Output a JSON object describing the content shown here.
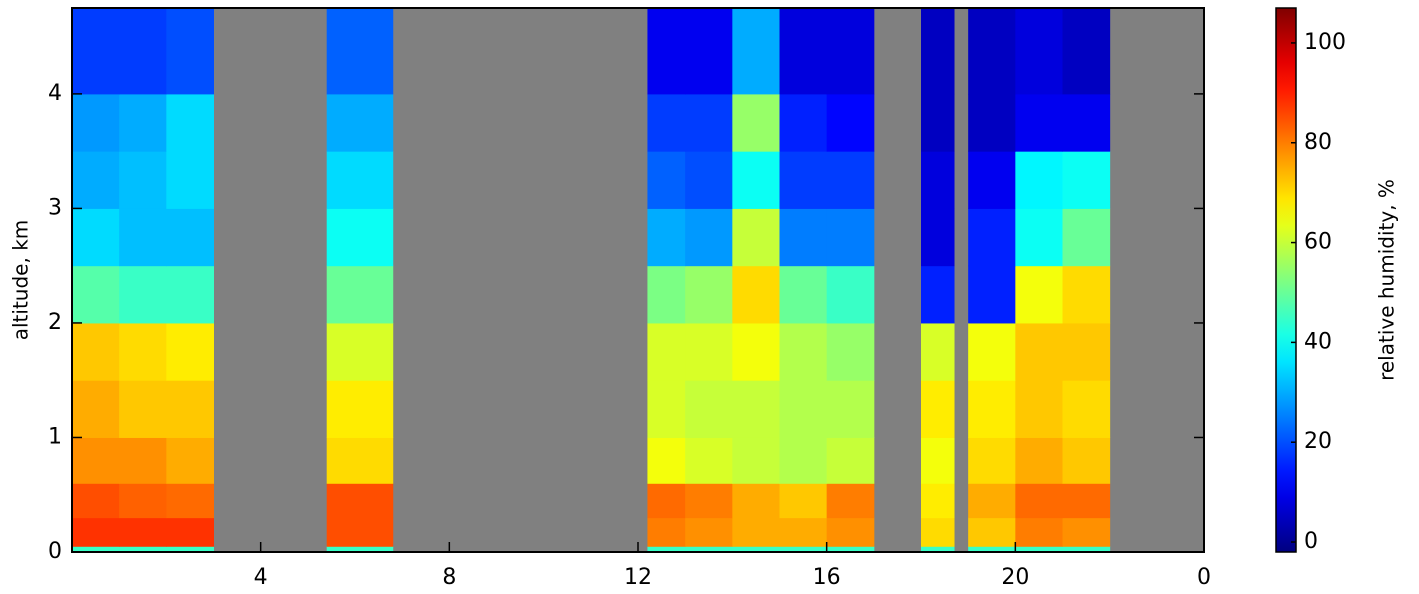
{
  "chart_data": {
    "type": "heatmap",
    "ylabel": "altitude, km",
    "colorbar_label": "relative humidity, %",
    "colormap": "jet",
    "missing_color": "#808080",
    "x_edges": [
      0,
      1,
      2,
      3,
      5.4,
      6.8,
      12.2,
      13,
      14,
      15,
      16,
      17,
      18,
      18.7,
      19,
      20,
      21,
      22,
      24
    ],
    "y_edges": [
      0,
      0.05,
      0.3,
      0.6,
      1,
      1.5,
      2,
      2.5,
      3,
      3.5,
      4,
      4.75
    ],
    "z": [
      [
        45,
        45,
        45,
        null,
        45,
        null,
        45,
        45,
        45,
        45,
        45,
        null,
        45,
        null,
        45,
        45,
        45,
        null
      ],
      [
        88,
        88,
        88,
        null,
        85,
        null,
        80,
        78,
        75,
        75,
        78,
        null,
        70,
        null,
        72,
        80,
        78,
        null
      ],
      [
        85,
        83,
        82,
        null,
        85,
        null,
        82,
        80,
        75,
        72,
        80,
        null,
        68,
        null,
        75,
        82,
        82,
        null
      ],
      [
        78,
        78,
        75,
        null,
        70,
        null,
        65,
        62,
        60,
        58,
        60,
        null,
        65,
        null,
        70,
        75,
        72,
        null
      ],
      [
        75,
        72,
        72,
        null,
        68,
        null,
        62,
        60,
        60,
        58,
        58,
        null,
        68,
        null,
        68,
        72,
        70,
        null
      ],
      [
        72,
        70,
        68,
        null,
        62,
        null,
        62,
        62,
        65,
        58,
        55,
        null,
        62,
        null,
        65,
        72,
        72,
        null
      ],
      [
        48,
        45,
        45,
        null,
        50,
        null,
        52,
        55,
        70,
        50,
        45,
        null,
        15,
        null,
        15,
        65,
        70,
        null
      ],
      [
        35,
        32,
        32,
        null,
        40,
        null,
        30,
        28,
        60,
        25,
        25,
        null,
        8,
        null,
        15,
        40,
        50,
        null
      ],
      [
        30,
        32,
        35,
        null,
        35,
        null,
        22,
        20,
        40,
        18,
        18,
        null,
        8,
        null,
        10,
        38,
        40,
        null
      ],
      [
        28,
        30,
        35,
        null,
        30,
        null,
        18,
        18,
        55,
        15,
        12,
        null,
        5,
        null,
        5,
        10,
        10,
        null
      ],
      [
        18,
        18,
        20,
        null,
        22,
        null,
        10,
        10,
        30,
        8,
        8,
        null,
        5,
        null,
        5,
        8,
        5,
        null
      ]
    ],
    "xlim": [
      0,
      24
    ],
    "xticks": [
      4,
      8,
      12,
      16,
      20,
      {
        "value": 24,
        "label": "0"
      }
    ],
    "ylim": [
      0,
      4.75
    ],
    "yticks": [
      0,
      1,
      2,
      3,
      4
    ],
    "clim": [
      -2,
      107
    ],
    "cticks": [
      0,
      20,
      40,
      60,
      80,
      100
    ]
  }
}
